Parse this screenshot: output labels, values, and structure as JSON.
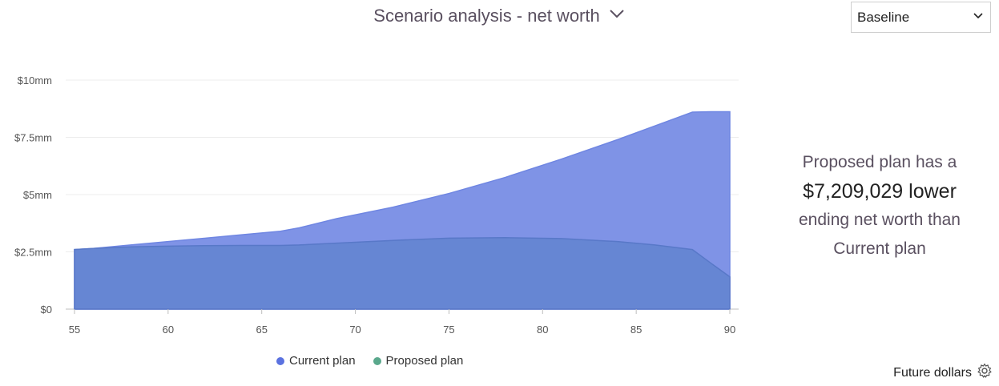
{
  "header": {
    "title": "Scenario analysis - net worth",
    "dropdown_icon": "chevron-down-icon"
  },
  "scenario_select": {
    "value": "Baseline"
  },
  "summary": {
    "line1": "Proposed plan has a",
    "amount": "$7,209,029 lower",
    "line3": "ending net worth than",
    "line4": "Current plan"
  },
  "footer": {
    "label": "Future dollars",
    "icon": "gear-icon"
  },
  "colors": {
    "current": "#5b72e0",
    "proposed": "#5aa88c",
    "current_fill": "#7f93e6",
    "proposed_fill": "#6585d2"
  },
  "chart_data": {
    "type": "area",
    "x": [
      55,
      56,
      58,
      60,
      62,
      64,
      66,
      67,
      69,
      72,
      75,
      78,
      81,
      84,
      86,
      88,
      89,
      90
    ],
    "xticks": [
      "55",
      "60",
      "65",
      "70",
      "75",
      "80",
      "85",
      "90"
    ],
    "yticks": [
      "$0",
      "$2.5mm",
      "$5mm",
      "$7.5mm",
      "$10mm"
    ],
    "ylim": [
      0,
      10
    ],
    "xlim": [
      55,
      90
    ],
    "grid": true,
    "legend": "bottom",
    "series": [
      {
        "name": "Current plan",
        "values": [
          2.6,
          2.65,
          2.8,
          2.95,
          3.1,
          3.25,
          3.4,
          3.55,
          3.95,
          4.45,
          5.05,
          5.75,
          6.55,
          7.4,
          8.0,
          8.6,
          8.62,
          8.62
        ]
      },
      {
        "name": "Proposed plan",
        "values": [
          2.6,
          2.65,
          2.72,
          2.75,
          2.77,
          2.78,
          2.78,
          2.8,
          2.88,
          3.0,
          3.1,
          3.12,
          3.08,
          2.95,
          2.8,
          2.6,
          2.0,
          1.41
        ]
      }
    ]
  }
}
